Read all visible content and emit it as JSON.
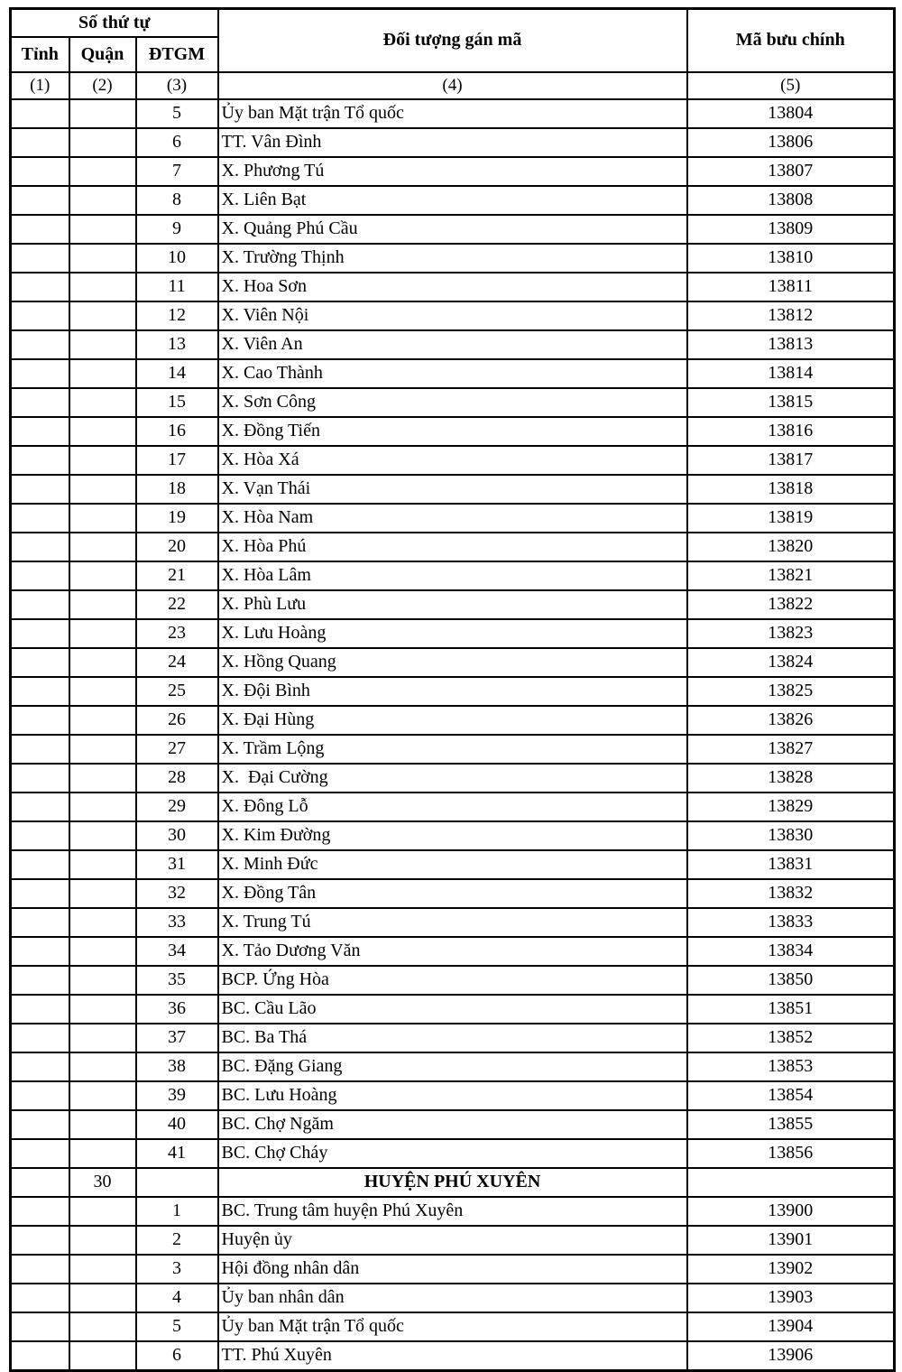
{
  "colors": {
    "text": "#000000",
    "background": "#ffffff",
    "border": "#000000"
  },
  "table": {
    "header": {
      "group": "Số thứ tự",
      "sub": [
        "Tỉnh",
        "Quận",
        "ĐTGM"
      ],
      "col4": "Đối tượng gán mã",
      "col5": "Mã bưu chính",
      "index": [
        "(1)",
        "(2)",
        "(3)",
        "(4)",
        "(5)"
      ]
    },
    "rows": [
      {
        "c": [
          "",
          "",
          "5",
          "Ủy ban Mặt trận Tổ quốc",
          "13804"
        ]
      },
      {
        "c": [
          "",
          "",
          "6",
          "TT. Vân Đình",
          "13806"
        ]
      },
      {
        "c": [
          "",
          "",
          "7",
          "X. Phương Tú",
          "13807"
        ]
      },
      {
        "c": [
          "",
          "",
          "8",
          "X. Liên Bạt",
          "13808"
        ]
      },
      {
        "c": [
          "",
          "",
          "9",
          "X. Quảng Phú Cầu",
          "13809"
        ]
      },
      {
        "c": [
          "",
          "",
          "10",
          "X. Trường Thịnh",
          "13810"
        ]
      },
      {
        "c": [
          "",
          "",
          "11",
          "X. Hoa Sơn",
          "13811"
        ]
      },
      {
        "c": [
          "",
          "",
          "12",
          "X. Viên Nội",
          "13812"
        ]
      },
      {
        "c": [
          "",
          "",
          "13",
          "X. Viên An",
          "13813"
        ]
      },
      {
        "c": [
          "",
          "",
          "14",
          "X. Cao Thành",
          "13814"
        ]
      },
      {
        "c": [
          "",
          "",
          "15",
          "X. Sơn Công",
          "13815"
        ]
      },
      {
        "c": [
          "",
          "",
          "16",
          "X. Đồng Tiến",
          "13816"
        ]
      },
      {
        "c": [
          "",
          "",
          "17",
          "X. Hòa Xá",
          "13817"
        ]
      },
      {
        "c": [
          "",
          "",
          "18",
          "X. Vạn Thái",
          "13818"
        ]
      },
      {
        "c": [
          "",
          "",
          "19",
          "X. Hòa Nam",
          "13819"
        ]
      },
      {
        "c": [
          "",
          "",
          "20",
          "X. Hòa Phú",
          "13820"
        ]
      },
      {
        "c": [
          "",
          "",
          "21",
          "X. Hòa Lâm",
          "13821"
        ]
      },
      {
        "c": [
          "",
          "",
          "22",
          "X. Phù Lưu",
          "13822"
        ]
      },
      {
        "c": [
          "",
          "",
          "23",
          "X. Lưu Hoàng",
          "13823"
        ]
      },
      {
        "c": [
          "",
          "",
          "24",
          "X. Hồng Quang",
          "13824"
        ]
      },
      {
        "c": [
          "",
          "",
          "25",
          "X. Đội Bình",
          "13825"
        ]
      },
      {
        "c": [
          "",
          "",
          "26",
          "X. Đại Hùng",
          "13826"
        ]
      },
      {
        "c": [
          "",
          "",
          "27",
          "X. Trầm Lộng",
          "13827"
        ]
      },
      {
        "c": [
          "",
          "",
          "28",
          "X.  Đại Cường",
          "13828"
        ]
      },
      {
        "c": [
          "",
          "",
          "29",
          "X. Đông Lỗ",
          "13829"
        ]
      },
      {
        "c": [
          "",
          "",
          "30",
          "X. Kim Đường",
          "13830"
        ]
      },
      {
        "c": [
          "",
          "",
          "31",
          "X. Minh Đức",
          "13831"
        ]
      },
      {
        "c": [
          "",
          "",
          "32",
          "X. Đồng Tân",
          "13832"
        ]
      },
      {
        "c": [
          "",
          "",
          "33",
          "X. Trung Tú",
          "13833"
        ]
      },
      {
        "c": [
          "",
          "",
          "34",
          "X. Tảo Dương Văn",
          "13834"
        ]
      },
      {
        "c": [
          "",
          "",
          "35",
          "BCP. Ứng Hòa",
          "13850"
        ]
      },
      {
        "c": [
          "",
          "",
          "36",
          "BC. Cầu Lão",
          "13851"
        ]
      },
      {
        "c": [
          "",
          "",
          "37",
          "BC. Ba Thá",
          "13852"
        ]
      },
      {
        "c": [
          "",
          "",
          "38",
          "BC. Đặng Giang",
          "13853"
        ]
      },
      {
        "c": [
          "",
          "",
          "39",
          "BC. Lưu Hoàng",
          "13854"
        ]
      },
      {
        "c": [
          "",
          "",
          "40",
          "BC. Chợ Ngăm",
          "13855"
        ]
      },
      {
        "c": [
          "",
          "",
          "41",
          "BC. Chợ Cháy",
          "13856"
        ]
      },
      {
        "c": [
          "",
          "30",
          "",
          "HUYỆN PHÚ XUYÊN",
          ""
        ],
        "section": true
      },
      {
        "c": [
          "",
          "",
          "1",
          "BC. Trung tâm huyện Phú Xuyên",
          "13900"
        ]
      },
      {
        "c": [
          "",
          "",
          "2",
          "Huyện ủy",
          "13901"
        ]
      },
      {
        "c": [
          "",
          "",
          "3",
          "Hội đồng nhân dân",
          "13902"
        ]
      },
      {
        "c": [
          "",
          "",
          "4",
          "Ủy ban nhân dân",
          "13903"
        ]
      },
      {
        "c": [
          "",
          "",
          "5",
          "Ủy ban Mặt trận Tổ quốc",
          "13904"
        ]
      },
      {
        "c": [
          "",
          "",
          "6",
          "TT. Phú Xuyên",
          "13906"
        ]
      }
    ]
  }
}
